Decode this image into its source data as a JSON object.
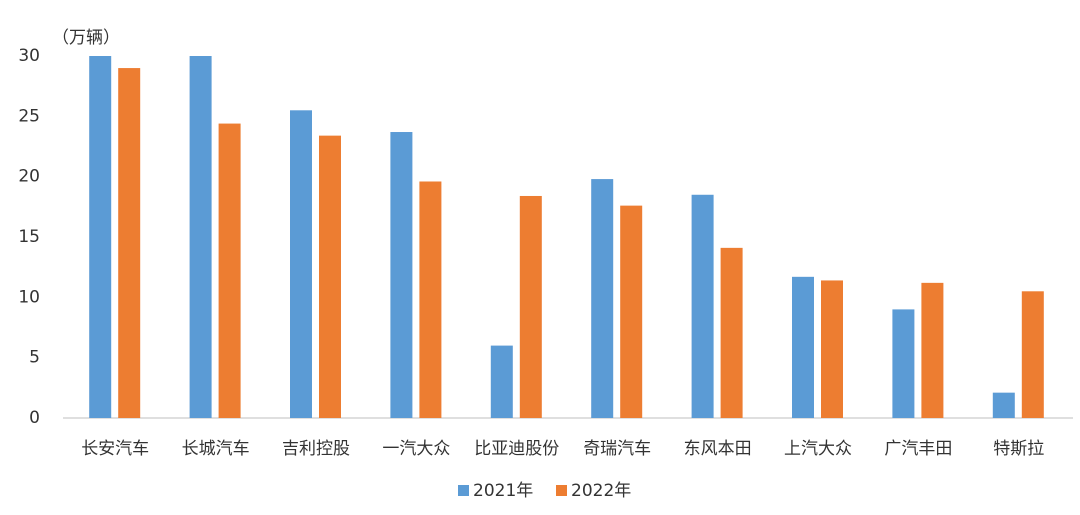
{
  "chart_data": {
    "type": "bar",
    "unit_label": "（万辆）",
    "categories": [
      "长安汽车",
      "长城汽车",
      "吉利控股",
      "一汽大众",
      "比亚迪股份",
      "奇瑞汽车",
      "东风本田",
      "上汽大众",
      "广汽丰田",
      "特斯拉"
    ],
    "series": [
      {
        "name": "2021年",
        "color": "#5b9bd5",
        "values": [
          30,
          30,
          25.5,
          23.7,
          6.0,
          19.8,
          18.5,
          11.7,
          9.0,
          2.1
        ]
      },
      {
        "name": "2022年",
        "color": "#ed7d31",
        "values": [
          29.0,
          24.4,
          23.4,
          19.6,
          18.4,
          17.6,
          14.1,
          11.4,
          11.2,
          10.5
        ]
      }
    ],
    "ylim": [
      0,
      30
    ],
    "yticks": [
      0,
      5,
      10,
      15,
      20,
      25,
      30
    ],
    "grid": false
  }
}
